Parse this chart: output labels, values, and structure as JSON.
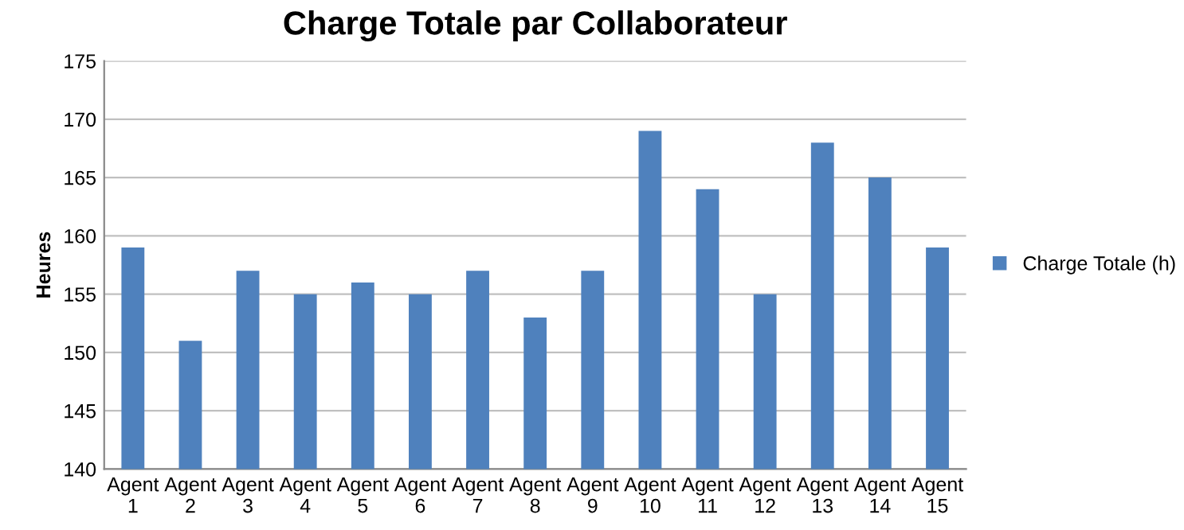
{
  "chart_data": {
    "type": "bar",
    "title": "Charge Totale par Collaborateur",
    "ylabel": "Heures",
    "categories": [
      "Agent\n1",
      "Agent\n2",
      "Agent\n3",
      "Agent\n4",
      "Agent\n5",
      "Agent\n6",
      "Agent\n7",
      "Agent\n8",
      "Agent\n9",
      "Agent\n10",
      "Agent\n11",
      "Agent\n12",
      "Agent\n13",
      "Agent\n14",
      "Agent\n15"
    ],
    "series": [
      {
        "name": "Charge Totale (h)",
        "color": "#4f81bd",
        "values": [
          159,
          151,
          157,
          155,
          156,
          155,
          157,
          153,
          157,
          169,
          164,
          155,
          168,
          165,
          159
        ]
      }
    ],
    "ylim": [
      140,
      175
    ],
    "yticks": [
      140,
      145,
      150,
      155,
      160,
      165,
      170,
      175
    ],
    "grid": "y",
    "legend": "right"
  }
}
